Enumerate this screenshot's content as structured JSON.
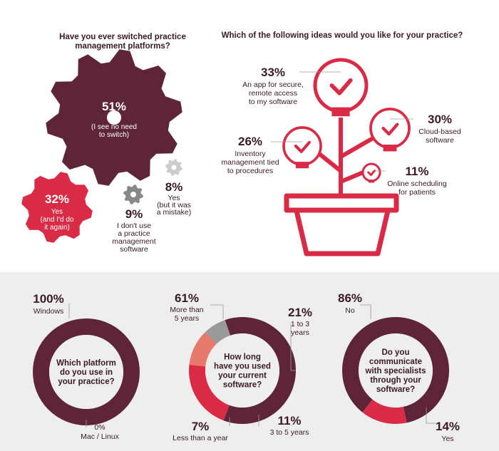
{
  "colors": {
    "maroon": "#5e2538",
    "red": "#d92b45",
    "salmon": "#e77a6c",
    "grey": "#9a9a9a",
    "light_grey": "#cccccc",
    "bg_bottom": "#eeeeee",
    "text": "#3a1a26"
  },
  "chart_data": [
    {
      "type": "gear-infographic",
      "title_lines": [
        "Have you ever switched practice",
        "management platforms?"
      ],
      "series": [
        {
          "value": 51,
          "pct": "51%",
          "lines": [
            "No",
            "(I see no need",
            "to switch)"
          ],
          "color": "#5e2538"
        },
        {
          "value": 32,
          "pct": "32%",
          "lines": [
            "Yes",
            "(and I'd do",
            "it again)"
          ],
          "color": "#d92b45"
        },
        {
          "value": 9,
          "pct": "9%",
          "lines": [
            "I don't use",
            "a practice",
            "management",
            "software"
          ],
          "color": "#888888"
        },
        {
          "value": 8,
          "pct": "8%",
          "lines": [
            "Yes",
            "(but it was",
            "a mistake)"
          ],
          "color": "#cccccc"
        }
      ]
    },
    {
      "type": "bulb-infographic",
      "title": "Which of the following ideas would you like for your practice?",
      "series": [
        {
          "value": 33,
          "pct": "33%",
          "lines": [
            "An app for secure,",
            "remote access",
            "to my software"
          ]
        },
        {
          "value": 30,
          "pct": "30%",
          "lines": [
            "Cloud-based",
            "software"
          ]
        },
        {
          "value": 26,
          "pct": "26%",
          "lines": [
            "Inventory",
            "management tied",
            "to procedures"
          ]
        },
        {
          "value": 11,
          "pct": "11%",
          "lines": [
            "Online scheduling",
            "for patients"
          ]
        }
      ]
    },
    {
      "type": "donut",
      "center_lines": [
        "Which platform",
        "do you use in",
        "your practice?"
      ],
      "series": [
        {
          "value": 100,
          "pct": "100%",
          "label": "Windows",
          "color": "#5e2538"
        },
        {
          "value": 0,
          "pct": "0%",
          "label": "Mac / Linux",
          "color": "#d92b45"
        }
      ]
    },
    {
      "type": "donut",
      "center_lines": [
        "How long",
        "have you used",
        "your current",
        "software?"
      ],
      "series": [
        {
          "value": 61,
          "pct": "61%",
          "lines": [
            "More than",
            "5 years"
          ],
          "color": "#5e2538"
        },
        {
          "value": 21,
          "pct": "21%",
          "lines": [
            "1 to 3",
            "years"
          ],
          "color": "#d92b45"
        },
        {
          "value": 11,
          "pct": "11%",
          "lines": [
            "3 to 5 years"
          ],
          "color": "#e77a6c"
        },
        {
          "value": 7,
          "pct": "7%",
          "lines": [
            "Less than a year"
          ],
          "color": "#9a9a9a"
        }
      ]
    },
    {
      "type": "donut",
      "center_lines": [
        "Do you",
        "communicate",
        "with specialists",
        "through your",
        "software?"
      ],
      "series": [
        {
          "value": 86,
          "pct": "86%",
          "label": "No",
          "color": "#5e2538"
        },
        {
          "value": 14,
          "pct": "14%",
          "label": "Yes",
          "color": "#d92b45"
        }
      ]
    }
  ]
}
